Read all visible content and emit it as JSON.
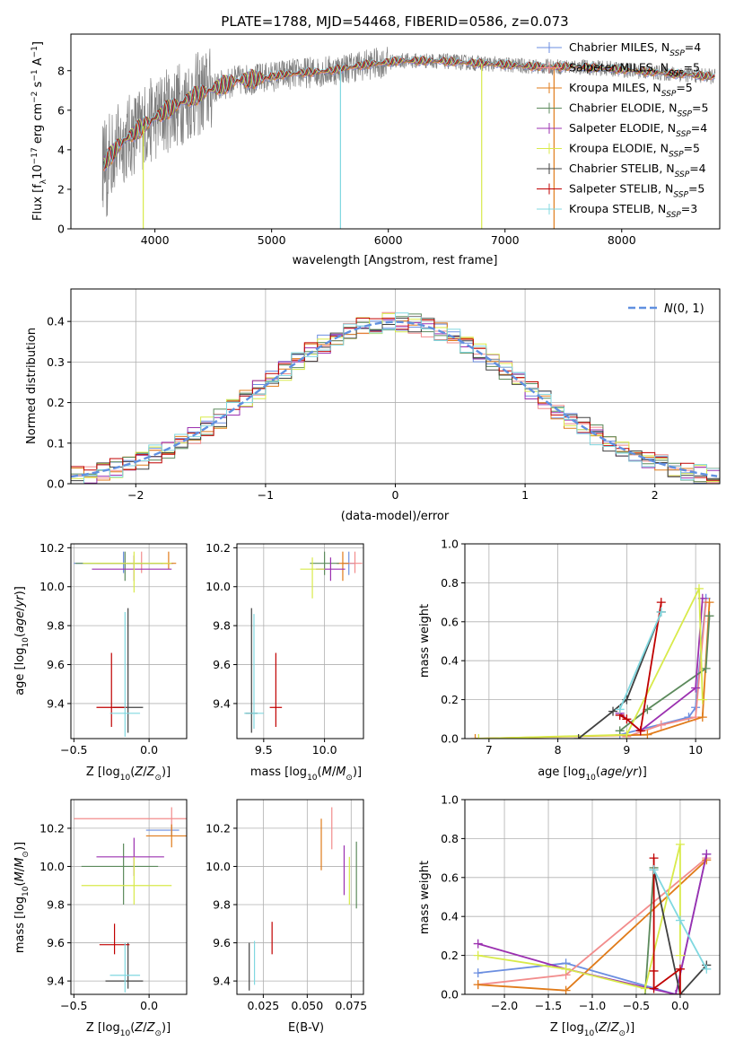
{
  "figure_title": "PLATE=1788, MJD=54468, FIBERID=0586, z=0.073",
  "colors": {
    "Chabrier MILES": "#6b8ee0",
    "Salpeter MILES": "#f28c8c",
    "Kroupa MILES": "#e07b1a",
    "Chabrier ELODIE": "#5c8a5c",
    "Salpeter ELODIE": "#9b30b0",
    "Kroupa ELODIE": "#d8ea4a",
    "Chabrier STELIB": "#404040",
    "Salpeter STELIB": "#c00000",
    "Kroupa STELIB": "#80d8e0",
    "gaussian": "#6090e0",
    "data_spectrum": "#808080",
    "grid": "#b0b0b0"
  },
  "chart_data": [
    {
      "type": "line",
      "panel": "spectrum",
      "xlabel": "wavelength [Angstrom, rest frame]",
      "ylabel": "Flux [f_λ 10^-17 erg cm^-2 s^-1 A^-1]",
      "xlim": [
        3280,
        8840
      ],
      "ylim": [
        0,
        9.85
      ],
      "xticks": [
        4000,
        5000,
        6000,
        7000,
        8000
      ],
      "yticks": [
        0,
        2,
        4,
        6,
        8
      ],
      "grid": false,
      "legend_position": "top-right",
      "legend": [
        "Chabrier MILES, N_SSP=4",
        "Salpeter MILES, N_SSP=5",
        "Kroupa MILES, N_SSP=5",
        "Chabrier ELODIE, N_SSP=5",
        "Salpeter ELODIE, N_SSP=4",
        "Kroupa ELODIE, N_SSP=5",
        "Chabrier STELIB, N_SSP=4",
        "Salpeter STELIB, N_SSP=5",
        "Kroupa STELIB, N_SSP=3"
      ],
      "continuum": [
        [
          3550,
          3.2
        ],
        [
          3700,
          4.3
        ],
        [
          3900,
          5.2
        ],
        [
          4100,
          6.0
        ],
        [
          4300,
          6.6
        ],
        [
          4500,
          7.1
        ],
        [
          4700,
          7.5
        ],
        [
          4900,
          7.6
        ],
        [
          5100,
          7.8
        ],
        [
          5300,
          7.9
        ],
        [
          5500,
          8.0
        ],
        [
          5800,
          8.3
        ],
        [
          6100,
          8.5
        ],
        [
          6400,
          8.5
        ],
        [
          6700,
          8.4
        ],
        [
          7000,
          8.3
        ],
        [
          7300,
          8.2
        ],
        [
          7600,
          8.2
        ],
        [
          7900,
          8.1
        ],
        [
          8300,
          7.9
        ],
        [
          8800,
          7.7
        ]
      ],
      "spikes": [
        [
          3900,
          "Kroupa ELODIE"
        ],
        [
          5590,
          "Kroupa STELIB"
        ],
        [
          6800,
          "Kroupa ELODIE"
        ],
        [
          7420,
          "Kroupa MILES"
        ]
      ]
    },
    {
      "type": "step",
      "panel": "residual histogram",
      "xlabel": "(data-model)/error",
      "ylabel": "Normed distribution",
      "xlim": [
        -2.5,
        2.5
      ],
      "ylim": [
        0,
        0.48
      ],
      "xticks": [
        -2,
        -1,
        0,
        1,
        2
      ],
      "yticks": [
        0.0,
        0.1,
        0.2,
        0.3,
        0.4
      ],
      "grid": true,
      "legend_position": "top-right",
      "legend": [
        "N(0,1)"
      ],
      "gaussian": {
        "mean": 0,
        "sigma": 1,
        "style": "dashed"
      }
    },
    {
      "type": "errorbar",
      "panel": "age vs Z",
      "xlabel": "Z [log10(Z/Z_sun)]",
      "ylabel": "age  [log10(age/yr)]",
      "xlim": [
        -0.52,
        0.25
      ],
      "ylim": [
        9.22,
        10.22
      ],
      "xticks": [
        -0.5,
        0.0
      ],
      "yticks": [
        9.4,
        9.6,
        9.8,
        10.0,
        10.2
      ],
      "grid": true,
      "points": [
        {
          "x": -0.17,
          "y": 10.12,
          "xerr": [
            0.33,
            0.33
          ],
          "yerr": [
            0.05,
            0.06
          ],
          "series": "Chabrier MILES"
        },
        {
          "x": -0.05,
          "y": 10.12,
          "xerr": [
            0.3,
            0.2
          ],
          "yerr": [
            0.05,
            0.06
          ],
          "series": "Salpeter MILES"
        },
        {
          "x": 0.13,
          "y": 10.12,
          "xerr": [
            0.05,
            0.05
          ],
          "yerr": [
            0.03,
            0.06
          ],
          "series": "Kroupa MILES"
        },
        {
          "x": -0.16,
          "y": 10.12,
          "xerr": [
            0.33,
            0.25
          ],
          "yerr": [
            0.09,
            0.06
          ],
          "series": "Chabrier ELODIE"
        },
        {
          "x": -0.1,
          "y": 10.09,
          "xerr": [
            0.28,
            0.25
          ],
          "yerr": [
            0.06,
            0.07
          ],
          "series": "Salpeter ELODIE"
        },
        {
          "x": -0.1,
          "y": 10.12,
          "xerr": [
            0.34,
            0.25
          ],
          "yerr": [
            0.15,
            0.06
          ],
          "series": "Kroupa ELODIE"
        },
        {
          "x": -0.14,
          "y": 9.38,
          "xerr": [
            0.1,
            0.1
          ],
          "yerr": [
            0.13,
            0.51
          ],
          "series": "Chabrier STELIB"
        },
        {
          "x": -0.25,
          "y": 9.38,
          "xerr": [
            0.1,
            0.1
          ],
          "yerr": [
            0.1,
            0.28
          ],
          "series": "Salpeter STELIB"
        },
        {
          "x": -0.16,
          "y": 9.35,
          "xerr": [
            0.1,
            0.1
          ],
          "yerr": [
            0.12,
            0.52
          ],
          "series": "Kroupa STELIB"
        }
      ]
    },
    {
      "type": "errorbar",
      "panel": "age vs mass",
      "xlabel": "mass [log10(M/M_sun)]",
      "ylabel": "",
      "xlim": [
        9.28,
        10.32
      ],
      "ylim": [
        9.22,
        10.22
      ],
      "xticks": [
        9.5,
        10.0
      ],
      "yticks": [
        9.4,
        9.6,
        9.8,
        10.0,
        10.2
      ],
      "grid": true,
      "points": [
        {
          "x": 10.2,
          "y": 10.12,
          "xerr": [
            0.05,
            0.05
          ],
          "yerr": [
            0.06,
            0.06
          ],
          "series": "Chabrier MILES"
        },
        {
          "x": 10.25,
          "y": 10.12,
          "xerr": [
            0.06,
            0.06
          ],
          "yerr": [
            0.05,
            0.06
          ],
          "series": "Salpeter MILES"
        },
        {
          "x": 10.15,
          "y": 10.12,
          "xerr": [
            0.05,
            0.05
          ],
          "yerr": [
            0.09,
            0.06
          ],
          "series": "Kroupa MILES"
        },
        {
          "x": 10.0,
          "y": 10.12,
          "xerr": [
            0.12,
            0.12
          ],
          "yerr": [
            0.06,
            0.06
          ],
          "series": "Chabrier ELODIE"
        },
        {
          "x": 10.05,
          "y": 10.09,
          "xerr": [
            0.12,
            0.12
          ],
          "yerr": [
            0.06,
            0.06
          ],
          "series": "Salpeter ELODIE"
        },
        {
          "x": 9.9,
          "y": 10.09,
          "xerr": [
            0.1,
            0.1
          ],
          "yerr": [
            0.15,
            0.06
          ],
          "series": "Kroupa ELODIE"
        },
        {
          "x": 9.4,
          "y": 9.35,
          "xerr": [
            0.05,
            0.05
          ],
          "yerr": [
            0.1,
            0.54
          ],
          "series": "Chabrier STELIB"
        },
        {
          "x": 9.6,
          "y": 9.38,
          "xerr": [
            0.05,
            0.05
          ],
          "yerr": [
            0.1,
            0.28
          ],
          "series": "Salpeter STELIB"
        },
        {
          "x": 9.42,
          "y": 9.35,
          "xerr": [
            0.08,
            0.08
          ],
          "yerr": [
            0.08,
            0.51
          ],
          "series": "Kroupa STELIB"
        }
      ]
    },
    {
      "type": "line",
      "panel": "mass weight vs age",
      "xlabel": "age  [log10(age/yr)]",
      "ylabel": "mass weight",
      "xlim": [
        6.65,
        10.35
      ],
      "ylim": [
        0,
        1.0
      ],
      "xticks": [
        7,
        8,
        9,
        10
      ],
      "yticks": [
        0.0,
        0.2,
        0.4,
        0.6,
        0.8,
        1.0
      ],
      "grid": true,
      "series": [
        {
          "name": "Chabrier MILES",
          "points": [
            [
              8.9,
              0.02
            ],
            [
              9.9,
              0.11
            ],
            [
              10.0,
              0.16
            ],
            [
              10.15,
              0.72
            ]
          ]
        },
        {
          "name": "Salpeter MILES",
          "points": [
            [
              9.0,
              0.01
            ],
            [
              9.5,
              0.07
            ],
            [
              10.0,
              0.11
            ],
            [
              10.15,
              0.7
            ]
          ]
        },
        {
          "name": "Kroupa MILES",
          "points": [
            [
              6.8,
              0.0
            ],
            [
              9.3,
              0.02
            ],
            [
              10.1,
              0.11
            ],
            [
              10.2,
              0.7
            ]
          ]
        },
        {
          "name": "Chabrier ELODIE",
          "points": [
            [
              8.9,
              0.04
            ],
            [
              9.3,
              0.15
            ],
            [
              10.15,
              0.36
            ],
            [
              10.2,
              0.63
            ]
          ]
        },
        {
          "name": "Salpeter ELODIE",
          "points": [
            [
              8.9,
              0.13
            ],
            [
              9.2,
              0.04
            ],
            [
              10.0,
              0.26
            ],
            [
              10.1,
              0.72
            ]
          ]
        },
        {
          "name": "Kroupa ELODIE",
          "points": [
            [
              6.85,
              0.0
            ],
            [
              9.0,
              0.02
            ],
            [
              10.05,
              0.77
            ],
            [
              10.1,
              0.2
            ]
          ]
        },
        {
          "name": "Chabrier STELIB",
          "points": [
            [
              8.3,
              0.0
            ],
            [
              8.8,
              0.14
            ],
            [
              9.0,
              0.2
            ],
            [
              9.5,
              0.65
            ]
          ]
        },
        {
          "name": "Salpeter STELIB",
          "points": [
            [
              8.9,
              0.12
            ],
            [
              9.0,
              0.1
            ],
            [
              9.2,
              0.04
            ],
            [
              9.5,
              0.7
            ]
          ]
        },
        {
          "name": "Kroupa STELIB",
          "points": [
            [
              8.9,
              0.15
            ],
            [
              9.5,
              0.65
            ]
          ]
        }
      ]
    },
    {
      "type": "errorbar",
      "panel": "mass vs Z",
      "xlabel": "Z [log10(Z/Z_sun)]",
      "ylabel": "mass [log10(M/M_sun)]",
      "xlim": [
        -0.52,
        0.25
      ],
      "ylim": [
        9.33,
        10.35
      ],
      "xticks": [
        -0.5,
        0.0
      ],
      "yticks": [
        9.4,
        9.6,
        9.8,
        10.0,
        10.2
      ],
      "grid": true,
      "points": [
        {
          "x": 0.15,
          "y": 10.19,
          "xerr": [
            0.17,
            0.05
          ],
          "yerr": [
            0.03,
            0.03
          ],
          "series": "Chabrier MILES"
        },
        {
          "x": 0.15,
          "y": 10.25,
          "xerr": [
            0.65,
            0.23
          ],
          "yerr": [
            0.06,
            0.06
          ],
          "series": "Salpeter MILES"
        },
        {
          "x": 0.15,
          "y": 10.16,
          "xerr": [
            0.17,
            0.2
          ],
          "yerr": [
            0.06,
            0.06
          ],
          "series": "Kroupa MILES"
        },
        {
          "x": -0.17,
          "y": 10.0,
          "xerr": [
            0.28,
            0.23
          ],
          "yerr": [
            0.2,
            0.12
          ],
          "series": "Chabrier ELODIE"
        },
        {
          "x": -0.1,
          "y": 10.05,
          "xerr": [
            0.25,
            0.2
          ],
          "yerr": [
            0.1,
            0.1
          ],
          "series": "Salpeter ELODIE"
        },
        {
          "x": -0.1,
          "y": 9.9,
          "xerr": [
            0.35,
            0.25
          ],
          "yerr": [
            0.1,
            0.15
          ],
          "series": "Kroupa ELODIE"
        },
        {
          "x": -0.14,
          "y": 9.4,
          "xerr": [
            0.15,
            0.1
          ],
          "yerr": [
            0.04,
            0.2
          ],
          "series": "Chabrier STELIB"
        },
        {
          "x": -0.23,
          "y": 9.59,
          "xerr": [
            0.1,
            0.1
          ],
          "yerr": [
            0.05,
            0.11
          ],
          "series": "Salpeter STELIB"
        },
        {
          "x": -0.16,
          "y": 9.43,
          "xerr": [
            0.1,
            0.1
          ],
          "yerr": [
            0.09,
            0.17
          ],
          "series": "Kroupa STELIB"
        }
      ]
    },
    {
      "type": "errorbar",
      "panel": "mass vs E(B-V)",
      "xlabel": "E(B-V)",
      "ylabel": "",
      "xlim": [
        0.01,
        0.082
      ],
      "ylim": [
        9.33,
        10.35
      ],
      "xticks": [
        0.025,
        0.05,
        0.075
      ],
      "yticks": [
        9.4,
        9.6,
        9.8,
        10.0,
        10.2
      ],
      "grid": true,
      "points": [
        {
          "x": 0.058,
          "y": 10.12,
          "yerr": [
            0.14,
            0.13
          ],
          "series": "Kroupa MILES"
        },
        {
          "x": 0.064,
          "y": 10.19,
          "yerr": [
            0.1,
            0.12
          ],
          "series": "Salpeter MILES"
        },
        {
          "x": 0.071,
          "y": 9.99,
          "yerr": [
            0.14,
            0.12
          ],
          "series": "Salpeter ELODIE"
        },
        {
          "x": 0.074,
          "y": 9.93,
          "yerr": [
            0.13,
            0.12
          ],
          "series": "Kroupa ELODIE"
        },
        {
          "x": 0.078,
          "y": 9.95,
          "yerr": [
            0.17,
            0.18
          ],
          "series": "Chabrier ELODIE"
        },
        {
          "x": 0.017,
          "y": 9.47,
          "yerr": [
            0.12,
            0.13
          ],
          "series": "Chabrier STELIB"
        },
        {
          "x": 0.02,
          "y": 9.48,
          "yerr": [
            0.1,
            0.13
          ],
          "series": "Kroupa STELIB"
        },
        {
          "x": 0.03,
          "y": 9.62,
          "yerr": [
            0.08,
            0.09
          ],
          "series": "Salpeter STELIB"
        }
      ]
    },
    {
      "type": "line",
      "panel": "mass weight vs Z",
      "xlabel": "Z [log10(Z/Z_sun)]",
      "ylabel": "mass weight",
      "xlim": [
        -2.45,
        0.45
      ],
      "ylim": [
        0,
        1.0
      ],
      "xticks": [
        -2.0,
        -1.5,
        -1.0,
        -0.5,
        0.0
      ],
      "yticks": [
        0.0,
        0.2,
        0.4,
        0.6,
        0.8,
        1.0
      ],
      "grid": true,
      "series": [
        {
          "name": "Chabrier MILES",
          "points": [
            [
              -2.3,
              0.11
            ],
            [
              -1.3,
              0.16
            ],
            [
              -0.05,
              0.0
            ],
            [
              0.3,
              0.72
            ]
          ]
        },
        {
          "name": "Salpeter MILES",
          "points": [
            [
              -2.3,
              0.05
            ],
            [
              -1.3,
              0.1
            ],
            [
              0.3,
              0.7
            ]
          ]
        },
        {
          "name": "Kroupa MILES",
          "points": [
            [
              -2.3,
              0.05
            ],
            [
              -1.3,
              0.02
            ],
            [
              0.3,
              0.69
            ]
          ]
        },
        {
          "name": "Chabrier ELODIE",
          "points": [
            [
              -0.4,
              0.0
            ],
            [
              -0.3,
              0.65
            ]
          ]
        },
        {
          "name": "Salpeter ELODIE",
          "points": [
            [
              -2.3,
              0.26
            ],
            [
              -1.3,
              0.13
            ],
            [
              -0.05,
              0.0
            ],
            [
              0.3,
              0.72
            ]
          ]
        },
        {
          "name": "Kroupa ELODIE",
          "points": [
            [
              -2.3,
              0.2
            ],
            [
              -1.3,
              0.13
            ],
            [
              -0.4,
              0.03
            ],
            [
              0.0,
              0.77
            ],
            [
              0.0,
              0.2
            ]
          ]
        },
        {
          "name": "Chabrier STELIB",
          "points": [
            [
              -0.3,
              0.64
            ],
            [
              0.0,
              0.0
            ],
            [
              0.3,
              0.15
            ]
          ]
        },
        {
          "name": "Salpeter STELIB",
          "points": [
            [
              -0.3,
              0.7
            ],
            [
              -0.3,
              0.12
            ],
            [
              -0.3,
              0.03
            ],
            [
              0.0,
              0.13
            ],
            [
              0.0,
              0.0
            ]
          ]
        },
        {
          "name": "Kroupa STELIB",
          "points": [
            [
              -0.3,
              0.64
            ],
            [
              0.0,
              0.38
            ],
            [
              0.3,
              0.13
            ]
          ]
        }
      ]
    }
  ]
}
